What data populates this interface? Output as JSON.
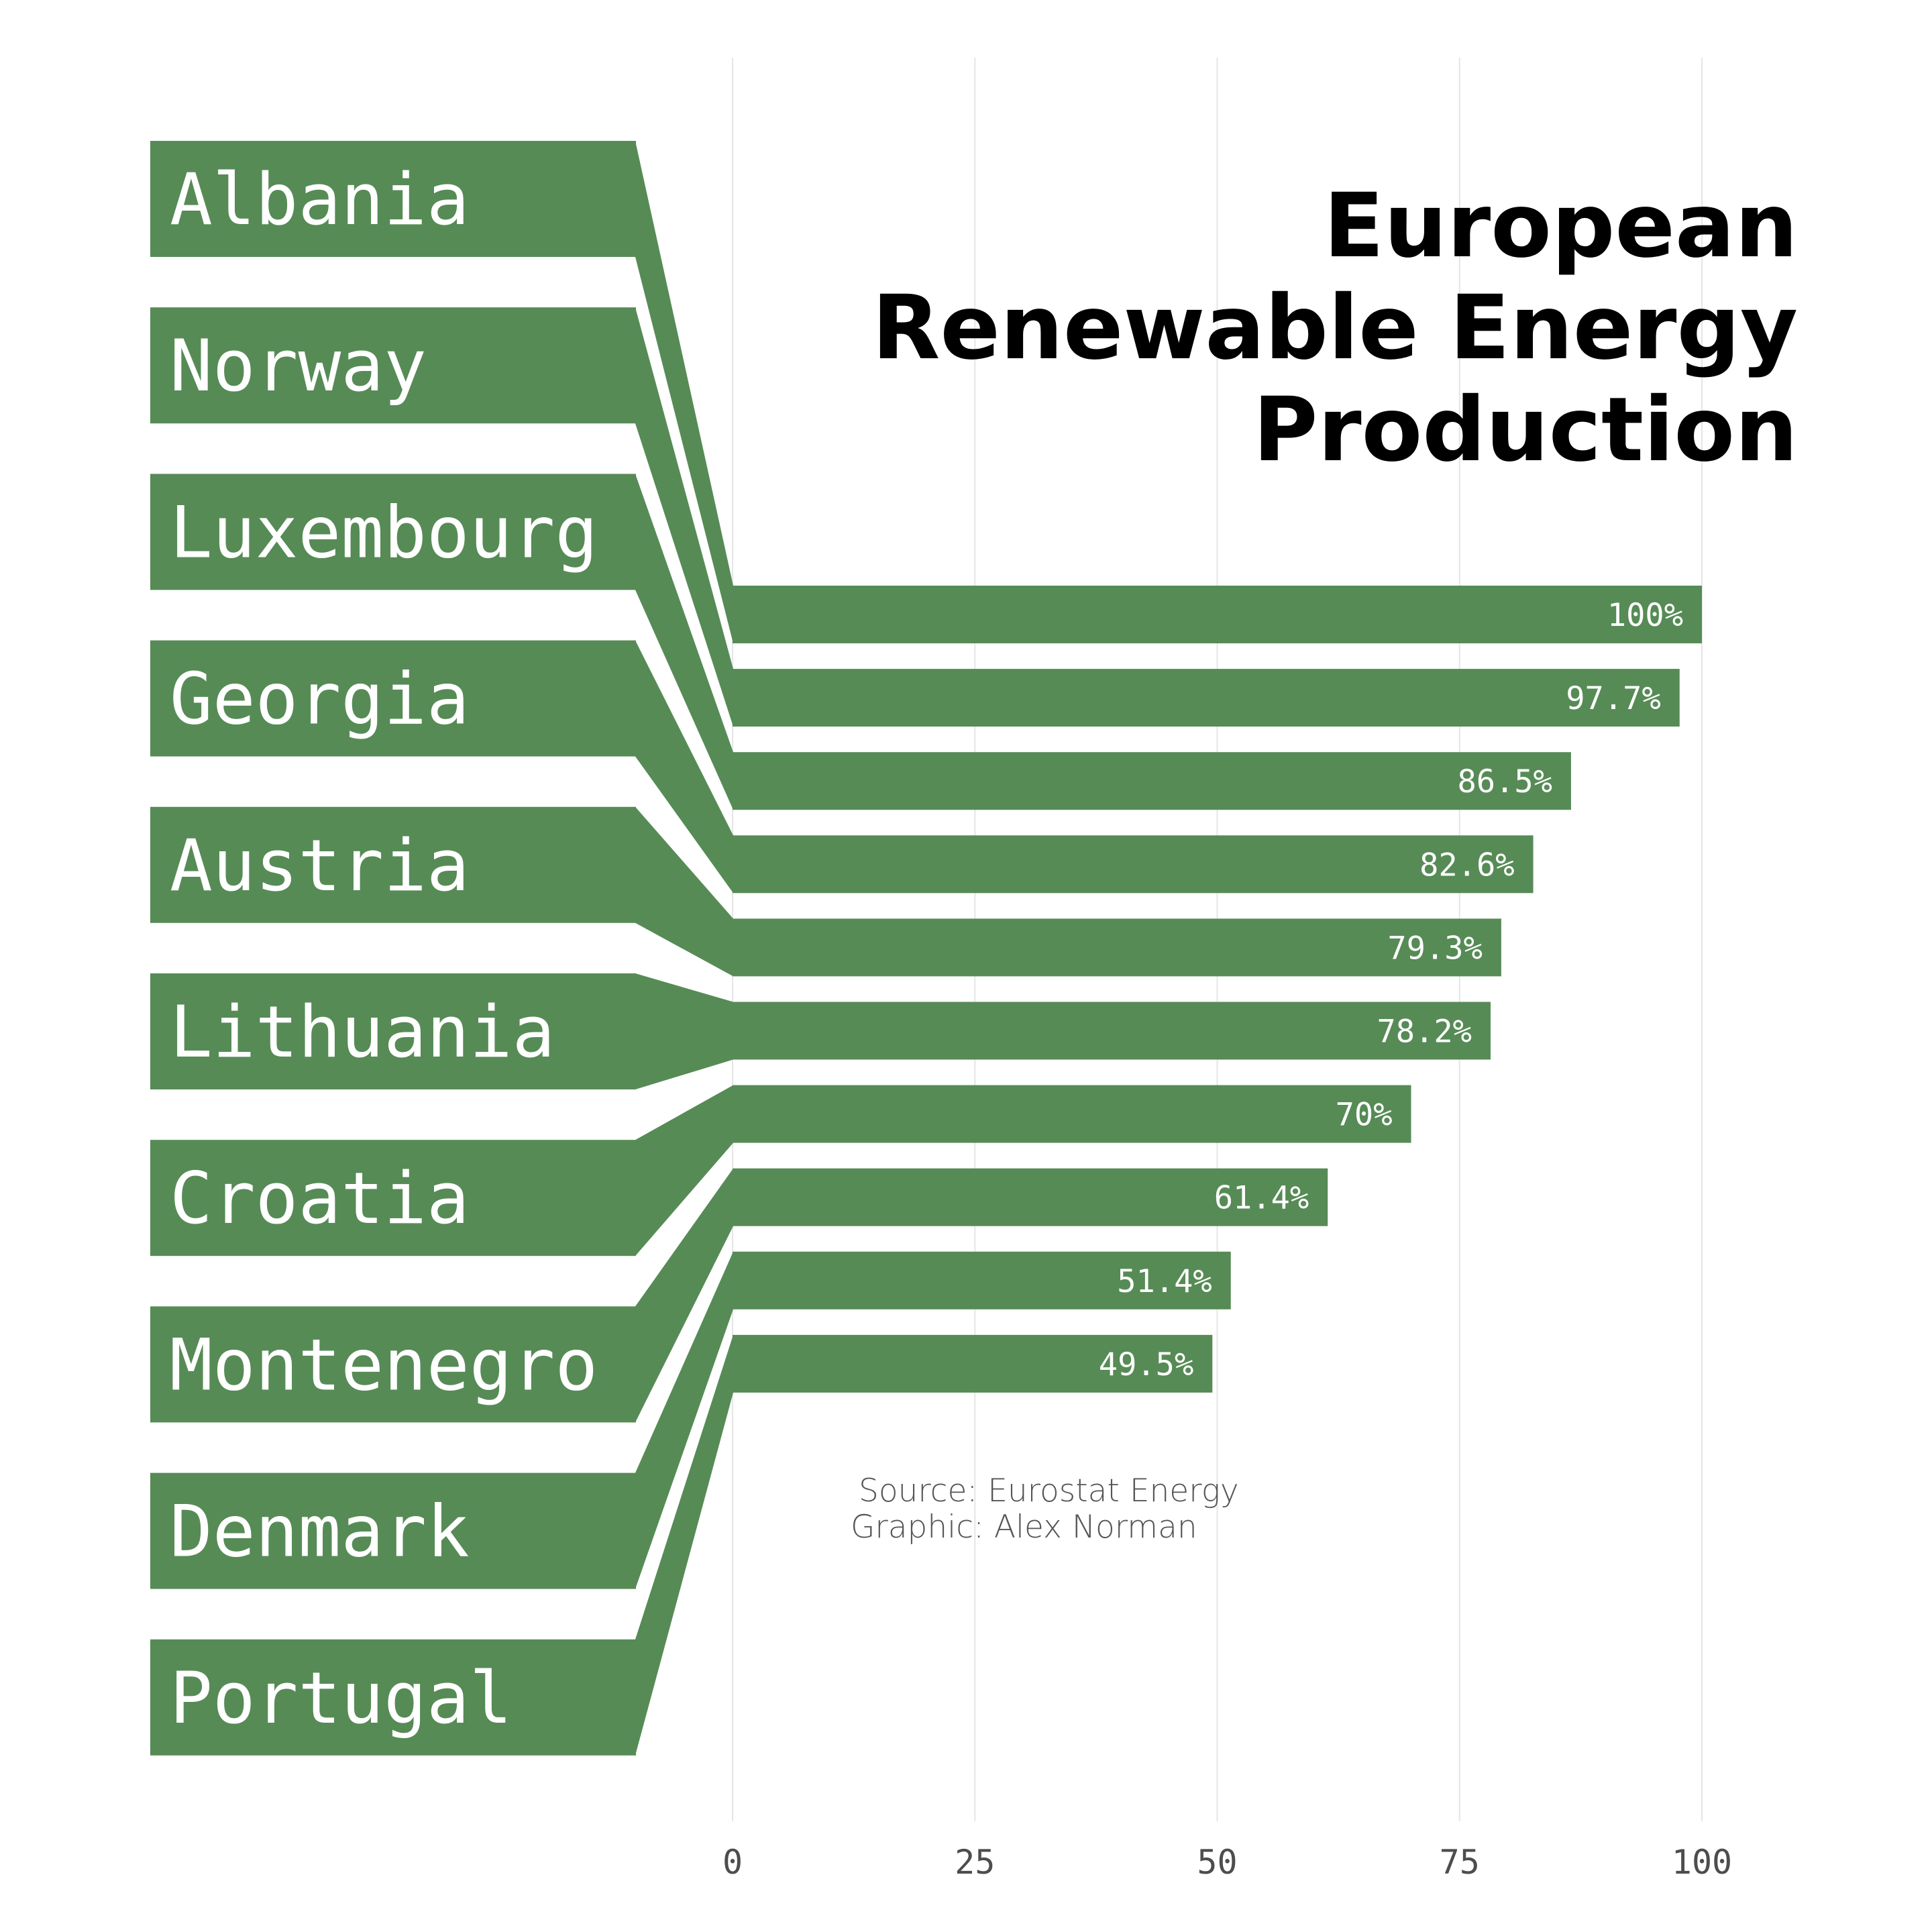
{
  "chart_data": {
    "type": "bar",
    "title": [
      "European",
      "Renewable Energy",
      "Production"
    ],
    "categories": [
      "Albania",
      "Norway",
      "Luxembourg",
      "Georgia",
      "Austria",
      "Lithuania",
      "Croatia",
      "Montenegro",
      "Denmark",
      "Portugal"
    ],
    "values": [
      100,
      97.7,
      86.5,
      82.6,
      79.3,
      78.2,
      70,
      61.4,
      51.4,
      49.5
    ],
    "value_labels": [
      "100%",
      "97.7%",
      "86.5%",
      "82.6%",
      "79.3%",
      "78.2%",
      "70%",
      "61.4%",
      "51.4%",
      "49.5%"
    ],
    "xlim": [
      0,
      100
    ],
    "x_ticks": [
      0,
      25,
      50,
      75,
      100
    ],
    "x_tick_labels": [
      "0",
      "25",
      "50",
      "75",
      "100"
    ],
    "grid": true,
    "bar_color": "#568b56",
    "caption": [
      "Source: Eurostat Energy",
      "Graphic: Alex Norman"
    ]
  }
}
